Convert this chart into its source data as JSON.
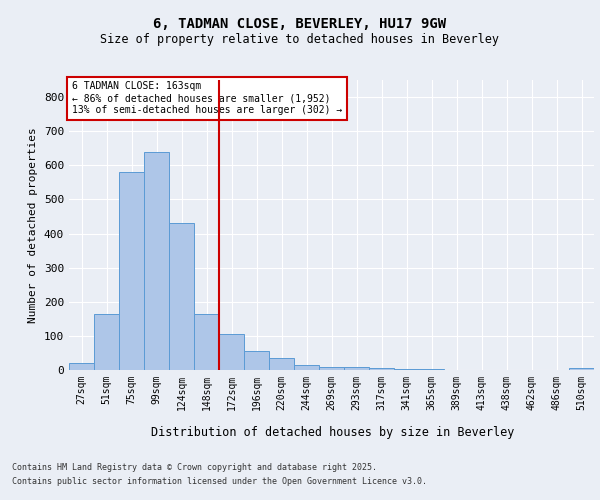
{
  "title1": "6, TADMAN CLOSE, BEVERLEY, HU17 9GW",
  "title2": "Size of property relative to detached houses in Beverley",
  "xlabel": "Distribution of detached houses by size in Beverley",
  "ylabel": "Number of detached properties",
  "bin_labels": [
    "27sqm",
    "51sqm",
    "75sqm",
    "99sqm",
    "124sqm",
    "148sqm",
    "172sqm",
    "196sqm",
    "220sqm",
    "244sqm",
    "269sqm",
    "293sqm",
    "317sqm",
    "341sqm",
    "365sqm",
    "389sqm",
    "413sqm",
    "438sqm",
    "462sqm",
    "486sqm",
    "510sqm"
  ],
  "bar_heights": [
    20,
    165,
    580,
    640,
    430,
    165,
    105,
    55,
    35,
    15,
    10,
    8,
    5,
    3,
    2,
    1,
    0,
    0,
    0,
    0,
    5
  ],
  "bar_color": "#aec6e8",
  "bar_edge_color": "#5b9bd5",
  "red_line_x": 5.5,
  "annotation_title": "6 TADMAN CLOSE: 163sqm",
  "annotation_line1": "← 86% of detached houses are smaller (1,952)",
  "annotation_line2": "13% of semi-detached houses are larger (302) →",
  "annotation_box_color": "#ffffff",
  "annotation_box_edge": "#cc0000",
  "red_line_color": "#cc0000",
  "background_color": "#eaeef5",
  "plot_bg_color": "#eaeef5",
  "grid_color": "#ffffff",
  "ylim": [
    0,
    850
  ],
  "yticks": [
    0,
    100,
    200,
    300,
    400,
    500,
    600,
    700,
    800
  ],
  "footer1": "Contains HM Land Registry data © Crown copyright and database right 2025.",
  "footer2": "Contains public sector information licensed under the Open Government Licence v3.0."
}
